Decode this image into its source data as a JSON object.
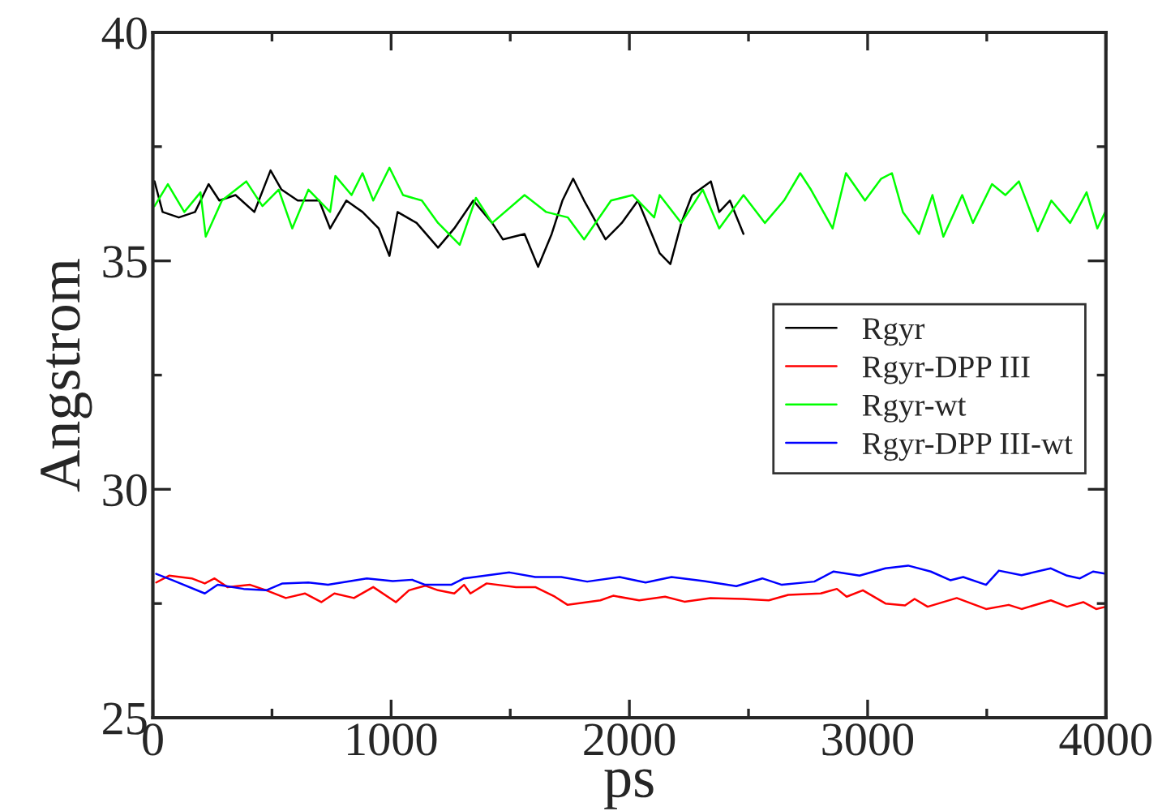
{
  "chart_data": {
    "type": "line",
    "xlabel": "ps",
    "ylabel": "Angstrom",
    "xlim": [
      0,
      4000
    ],
    "ylim": [
      25,
      40
    ],
    "xticks": [
      0,
      1000,
      2000,
      3000,
      4000
    ],
    "yticks": [
      25,
      30,
      35,
      40
    ],
    "grid": false,
    "legend": "right",
    "marker": "none",
    "line_style": "solid",
    "series": [
      {
        "name": "Rgyr",
        "color": "#000000",
        "x": [
          7,
          41,
          109,
          177,
          234,
          279,
          347,
          426,
          494,
          540,
          608,
          698,
          744,
          812,
          880,
          948,
          993,
          1027,
          1107,
          1197,
          1265,
          1345,
          1424,
          1469,
          1560,
          1617,
          1674,
          1719,
          1764,
          1810,
          1900,
          1968,
          2036,
          2127,
          2172,
          2218,
          2263,
          2342,
          2377,
          2422,
          2479
        ],
        "values": [
          36.74,
          36.07,
          35.95,
          36.07,
          36.68,
          36.32,
          36.44,
          36.07,
          36.98,
          36.56,
          36.32,
          36.32,
          35.71,
          36.32,
          36.07,
          35.71,
          35.11,
          36.07,
          35.83,
          35.29,
          35.71,
          36.32,
          35.83,
          35.47,
          35.59,
          34.87,
          35.59,
          36.32,
          36.8,
          36.32,
          35.47,
          35.83,
          36.32,
          35.17,
          34.93,
          35.83,
          36.44,
          36.74,
          36.07,
          36.32,
          35.59
        ]
      },
      {
        "name": "Rgyr-DPP III",
        "color": "#ff0000",
        "x": [
          14,
          68,
          163,
          218,
          259,
          313,
          408,
          476,
          558,
          639,
          707,
          762,
          844,
          925,
          1020,
          1075,
          1143,
          1197,
          1265,
          1306,
          1333,
          1401,
          1524,
          1605,
          1687,
          1741,
          1878,
          1932,
          2041,
          2150,
          2231,
          2340,
          2476,
          2585,
          2667,
          2803,
          2871,
          2912,
          2980,
          3075,
          3157,
          3197,
          3252,
          3374,
          3497,
          3592,
          3646,
          3769,
          3837,
          3905,
          3959,
          4000
        ],
        "values": [
          27.96,
          28.11,
          28.05,
          27.94,
          28.05,
          27.86,
          27.91,
          27.79,
          27.62,
          27.72,
          27.53,
          27.72,
          27.62,
          27.86,
          27.53,
          27.79,
          27.89,
          27.79,
          27.72,
          27.91,
          27.72,
          27.94,
          27.86,
          27.86,
          27.65,
          27.47,
          27.57,
          27.67,
          27.57,
          27.65,
          27.54,
          27.62,
          27.6,
          27.57,
          27.69,
          27.72,
          27.82,
          27.65,
          27.79,
          27.5,
          27.46,
          27.6,
          27.43,
          27.62,
          27.38,
          27.47,
          27.38,
          27.57,
          27.43,
          27.53,
          27.38,
          27.43
        ]
      },
      {
        "name": "Rgyr-wt",
        "color": "#00ff00",
        "x": [
          7,
          63,
          132,
          200,
          222,
          290,
          392,
          460,
          528,
          585,
          653,
          744,
          766,
          834,
          880,
          925,
          993,
          1050,
          1129,
          1197,
          1288,
          1356,
          1424,
          1560,
          1651,
          1742,
          1810,
          1923,
          2014,
          2104,
          2127,
          2218,
          2308,
          2377,
          2479,
          2569,
          2649,
          2717,
          2762,
          2853,
          2909,
          2989,
          3057,
          3102,
          3148,
          3216,
          3272,
          3318,
          3397,
          3442,
          3522,
          3578,
          3635,
          3714,
          3771,
          3850,
          3919,
          3964,
          4000
        ],
        "values": [
          36.2,
          36.68,
          36.07,
          36.5,
          35.53,
          36.32,
          36.74,
          36.2,
          36.56,
          35.71,
          36.56,
          36.07,
          36.86,
          36.44,
          36.92,
          36.32,
          37.04,
          36.44,
          36.32,
          35.83,
          35.35,
          36.38,
          35.83,
          36.44,
          36.07,
          35.95,
          35.47,
          36.32,
          36.44,
          35.95,
          36.44,
          35.83,
          36.56,
          35.71,
          36.44,
          35.83,
          36.32,
          36.92,
          36.56,
          35.71,
          36.92,
          36.32,
          36.8,
          36.92,
          36.07,
          35.59,
          36.44,
          35.53,
          36.44,
          35.83,
          36.68,
          36.44,
          36.74,
          35.65,
          36.32,
          35.83,
          36.5,
          35.71,
          36.1
        ]
      },
      {
        "name": "Rgyr-DPP III-wt",
        "color": "#0000ff",
        "x": [
          14,
          82,
          218,
          272,
          381,
          476,
          544,
          653,
          735,
          898,
          1007,
          1088,
          1143,
          1252,
          1306,
          1497,
          1605,
          1714,
          1823,
          1959,
          2068,
          2177,
          2313,
          2449,
          2558,
          2640,
          2776,
          2857,
          2966,
          3075,
          3170,
          3265,
          3347,
          3401,
          3497,
          3551,
          3646,
          3769,
          3837,
          3891,
          3946,
          4000
        ],
        "values": [
          28.15,
          28.01,
          27.72,
          27.91,
          27.82,
          27.79,
          27.94,
          27.96,
          27.91,
          28.05,
          27.99,
          28.02,
          27.91,
          27.91,
          28.05,
          28.18,
          28.08,
          28.08,
          27.98,
          28.08,
          27.96,
          28.08,
          27.99,
          27.88,
          28.05,
          27.91,
          27.98,
          28.2,
          28.11,
          28.27,
          28.33,
          28.2,
          28.01,
          28.08,
          27.91,
          28.22,
          28.12,
          28.27,
          28.11,
          28.05,
          28.2,
          28.15
        ]
      }
    ]
  }
}
